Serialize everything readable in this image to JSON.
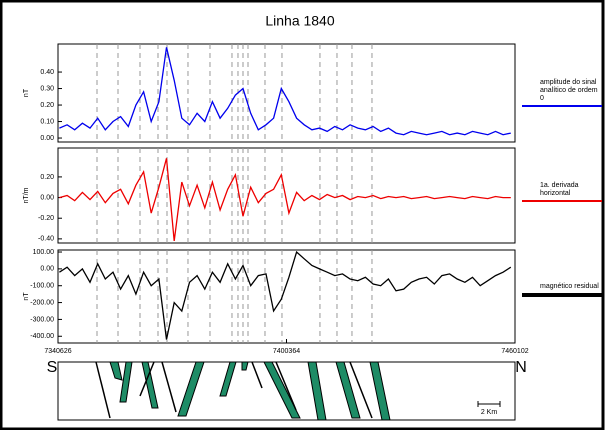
{
  "title": "Linha 1840",
  "chart_data": [
    {
      "type": "line",
      "ylabel": "nT",
      "xlim": [
        7340626,
        7460102
      ],
      "ylim": [
        -0.024,
        0.57
      ],
      "yticks": [
        {
          "value": 0,
          "label": "0.00"
        },
        {
          "value": 0.1,
          "label": "0.10"
        },
        {
          "value": 0.2,
          "label": "0.20"
        },
        {
          "value": 0.3,
          "label": "0.30"
        },
        {
          "value": 0.4,
          "label": "0.40"
        }
      ],
      "markers": [
        7350822,
        7356312,
        7362062,
        7366768,
        7369120,
        7374608,
        7380360,
        7386110,
        7387680,
        7388990,
        7390300,
        7394740,
        7399180,
        7409110,
        7413560,
        7417480,
        7422710
      ],
      "x": [
        7341000,
        7343000,
        7345000,
        7347000,
        7349000,
        7351000,
        7353000,
        7355000,
        7357000,
        7359000,
        7361000,
        7363000,
        7365000,
        7367000,
        7369000,
        7371000,
        7373000,
        7375000,
        7377000,
        7379000,
        7381000,
        7383000,
        7385000,
        7387000,
        7389000,
        7391000,
        7393000,
        7395000,
        7397000,
        7399000,
        7401000,
        7403000,
        7405000,
        7407000,
        7409000,
        7411000,
        7413000,
        7415000,
        7417000,
        7419000,
        7421000,
        7423000,
        7425000,
        7427000,
        7429000,
        7431000,
        7433000,
        7435000,
        7437000,
        7439000,
        7441000,
        7443000,
        7445000,
        7447000,
        7449000,
        7451000,
        7453000,
        7455000,
        7457000,
        7459000
      ],
      "series": [
        {
          "name": "amplitude do sinal analítico de ordem 0",
          "color": "#0000ee",
          "width": 1.3,
          "values": [
            0.06,
            0.08,
            0.05,
            0.09,
            0.06,
            0.12,
            0.05,
            0.1,
            0.13,
            0.07,
            0.2,
            0.28,
            0.1,
            0.22,
            0.55,
            0.35,
            0.12,
            0.08,
            0.15,
            0.1,
            0.22,
            0.12,
            0.18,
            0.26,
            0.3,
            0.15,
            0.05,
            0.08,
            0.12,
            0.3,
            0.22,
            0.12,
            0.08,
            0.05,
            0.06,
            0.04,
            0.07,
            0.05,
            0.08,
            0.06,
            0.05,
            0.07,
            0.04,
            0.06,
            0.03,
            0.02,
            0.04,
            0.03,
            0.02,
            0.03,
            0.04,
            0.02,
            0.03,
            0.02,
            0.04,
            0.03,
            0.02,
            0.04,
            0.02,
            0.03
          ]
        }
      ]
    },
    {
      "type": "line",
      "ylabel": "nT/m",
      "xlim": [
        7340626,
        7460102
      ],
      "ylim": [
        -0.44,
        0.48
      ],
      "yticks": [
        {
          "value": -0.4,
          "label": "-0.40"
        },
        {
          "value": -0.2,
          "label": "-0.20"
        },
        {
          "value": 0,
          "label": "0.00"
        },
        {
          "value": 0.2,
          "label": "0.20"
        }
      ],
      "markers": [
        7350822,
        7356312,
        7362062,
        7366768,
        7369120,
        7374608,
        7380360,
        7386110,
        7387680,
        7388990,
        7390300,
        7394740,
        7399180,
        7409110,
        7413560,
        7417480,
        7422710
      ],
      "x": [
        7341000,
        7343000,
        7345000,
        7347000,
        7349000,
        7351000,
        7353000,
        7355000,
        7357000,
        7359000,
        7361000,
        7363000,
        7365000,
        7367000,
        7369000,
        7371000,
        7373000,
        7375000,
        7377000,
        7379000,
        7381000,
        7383000,
        7385000,
        7387000,
        7389000,
        7391000,
        7393000,
        7395000,
        7397000,
        7399000,
        7401000,
        7403000,
        7405000,
        7407000,
        7409000,
        7411000,
        7413000,
        7415000,
        7417000,
        7419000,
        7421000,
        7423000,
        7425000,
        7427000,
        7429000,
        7431000,
        7433000,
        7435000,
        7437000,
        7439000,
        7441000,
        7443000,
        7445000,
        7447000,
        7449000,
        7451000,
        7453000,
        7455000,
        7457000,
        7459000
      ],
      "series": [
        {
          "name": "1a. derivada horizontal",
          "color": "#ee0000",
          "width": 1.3,
          "values": [
            0.0,
            0.02,
            -0.03,
            0.05,
            -0.02,
            0.06,
            -0.05,
            0.04,
            0.08,
            -0.06,
            0.12,
            0.25,
            -0.15,
            0.1,
            0.38,
            -0.42,
            0.15,
            -0.08,
            0.12,
            -0.1,
            0.15,
            -0.12,
            0.08,
            0.22,
            -0.18,
            0.1,
            -0.05,
            0.04,
            0.08,
            0.22,
            -0.15,
            0.05,
            -0.03,
            0.02,
            -0.02,
            0.03,
            0.0,
            0.02,
            -0.02,
            0.01,
            0.0,
            0.02,
            -0.01,
            0.01,
            0.0,
            0.01,
            -0.01,
            0.0,
            0.01,
            -0.01,
            0.0,
            0.01,
            0.0,
            -0.01,
            0.01,
            0.0,
            -0.01,
            0.01,
            0.0,
            0.0
          ]
        }
      ]
    },
    {
      "type": "line",
      "ylabel": "nT",
      "xlim": [
        7340626,
        7460102
      ],
      "ylim": [
        -440,
        112
      ],
      "xticks": [
        7340626,
        7400364,
        7460102
      ],
      "yticks": [
        {
          "value": -400,
          "label": "-400.00"
        },
        {
          "value": -300,
          "label": "-300.00"
        },
        {
          "value": -200,
          "label": "-200.00"
        },
        {
          "value": -100,
          "label": "-100.00"
        },
        {
          "value": 0,
          "label": "0.00"
        },
        {
          "value": 100,
          "label": "100.00"
        }
      ],
      "markers": [
        7350822,
        7356312,
        7362062,
        7366768,
        7369120,
        7374608,
        7380360,
        7386110,
        7387680,
        7388990,
        7390300,
        7394740,
        7399180,
        7409110,
        7413560,
        7417480,
        7422710
      ],
      "x": [
        7341000,
        7343000,
        7345000,
        7347000,
        7349000,
        7351000,
        7353000,
        7355000,
        7357000,
        7359000,
        7361000,
        7363000,
        7365000,
        7367000,
        7369000,
        7371000,
        7373000,
        7375000,
        7377000,
        7379000,
        7381000,
        7383000,
        7385000,
        7387000,
        7389000,
        7391000,
        7393000,
        7395000,
        7397000,
        7399000,
        7401000,
        7403000,
        7405000,
        7407000,
        7409000,
        7411000,
        7413000,
        7415000,
        7417000,
        7419000,
        7421000,
        7423000,
        7425000,
        7427000,
        7429000,
        7431000,
        7433000,
        7435000,
        7437000,
        7439000,
        7441000,
        7443000,
        7445000,
        7447000,
        7449000,
        7451000,
        7453000,
        7455000,
        7457000,
        7459000
      ],
      "series": [
        {
          "name": "magnético residual",
          "color": "#000000",
          "width": 1.3,
          "values": [
            -20,
            10,
            -40,
            0,
            -80,
            30,
            -60,
            -20,
            -120,
            -40,
            -150,
            -20,
            -100,
            -60,
            -420,
            -200,
            -250,
            -80,
            -40,
            -120,
            -20,
            -80,
            30,
            -60,
            20,
            -100,
            -40,
            -30,
            -250,
            -180,
            -50,
            100,
            60,
            20,
            0,
            -20,
            -40,
            -30,
            -60,
            -70,
            -50,
            -90,
            -100,
            -60,
            -130,
            -120,
            -80,
            -60,
            -50,
            -90,
            -40,
            -30,
            -60,
            -80,
            -50,
            -100,
            -70,
            -40,
            -20,
            10
          ]
        }
      ]
    }
  ],
  "section": {
    "left": "S",
    "right": "N",
    "scale": "2 Km"
  }
}
